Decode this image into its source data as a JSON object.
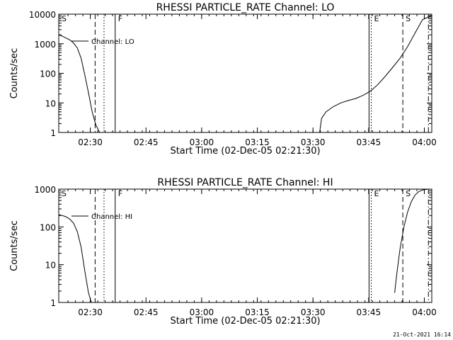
{
  "footer": {
    "timestamp": "21-Oct-2021 16:14"
  },
  "style": {
    "background": "#ffffff",
    "foreground": "#000000"
  },
  "chart_data": [
    {
      "type": "line",
      "title": "RHESSI PARTICLE_RATE Channel: LO",
      "xlabel": "Start Time (02-Dec-05 02:21:30)",
      "ylabel": "Counts/sec",
      "x_unit": "minutes after 02:21:30",
      "xlim": [
        0,
        100.5
      ],
      "ylim": [
        1,
        10000
      ],
      "yscale": "log",
      "grid": false,
      "x_ticks": [
        {
          "label": "02:30",
          "x": 8.5
        },
        {
          "label": "02:45",
          "x": 23.5
        },
        {
          "label": "03:00",
          "x": 38.5
        },
        {
          "label": "03:15",
          "x": 53.5
        },
        {
          "label": "03:30",
          "x": 68.5
        },
        {
          "label": "03:45",
          "x": 83.5
        },
        {
          "label": "04:00",
          "x": 98.5
        }
      ],
      "y_ticks": [
        {
          "label": "1",
          "y": 1
        },
        {
          "label": "10",
          "y": 10
        },
        {
          "label": "100",
          "y": 100
        },
        {
          "label": "1000",
          "y": 1000
        },
        {
          "label": "10000",
          "y": 10000
        }
      ],
      "legend": {
        "position": "top-left",
        "entries": [
          "Channel: LO"
        ]
      },
      "series": [
        {
          "name": "Channel: LO",
          "segments": [
            [
              [
                0,
                2000
              ],
              [
                1,
                1800
              ],
              [
                2,
                1550
              ],
              [
                3,
                1350
              ],
              [
                4,
                1050
              ],
              [
                5,
                720
              ],
              [
                6,
                330
              ],
              [
                7,
                90
              ],
              [
                8,
                22
              ],
              [
                9,
                5
              ],
              [
                10,
                1.8
              ],
              [
                11,
                1
              ]
            ],
            [
              [
                70.3,
                1
              ],
              [
                70.8,
                3
              ],
              [
                72,
                5
              ],
              [
                74,
                7.5
              ],
              [
                76,
                10
              ],
              [
                78,
                12
              ],
              [
                80,
                14
              ],
              [
                82,
                18
              ],
              [
                84,
                25
              ],
              [
                86,
                42
              ],
              [
                88,
                80
              ],
              [
                90,
                160
              ],
              [
                92,
                330
              ],
              [
                94,
                800
              ],
              [
                96,
                2300
              ],
              [
                98,
                6500
              ],
              [
                100,
                8500
              ],
              [
                100.5,
                8800
              ]
            ]
          ]
        }
      ],
      "markers": [
        {
          "label": "S",
          "x": 0,
          "style": "dash-dot"
        },
        {
          "label": "",
          "x": 9.8,
          "style": "dashed"
        },
        {
          "label": "",
          "x": 12.2,
          "style": "dotted"
        },
        {
          "label": "F",
          "x": 15.2,
          "style": "solid"
        },
        {
          "label": "",
          "x": 83.6,
          "style": "solid"
        },
        {
          "label": "E",
          "x": 84.2,
          "style": "dotted"
        },
        {
          "label": "S",
          "x": 92.7,
          "style": "dashed"
        },
        {
          "label": "",
          "x": 99.6,
          "style": "dash-dot"
        }
      ]
    },
    {
      "type": "line",
      "title": "RHESSI PARTICLE_RATE Channel: HI",
      "xlabel": "Start Time (02-Dec-05 02:21:30)",
      "ylabel": "Counts/sec",
      "x_unit": "minutes after 02:21:30",
      "xlim": [
        0,
        100.5
      ],
      "ylim": [
        1,
        1000
      ],
      "yscale": "log",
      "grid": false,
      "x_ticks": [
        {
          "label": "02:30",
          "x": 8.5
        },
        {
          "label": "02:45",
          "x": 23.5
        },
        {
          "label": "03:00",
          "x": 38.5
        },
        {
          "label": "03:15",
          "x": 53.5
        },
        {
          "label": "03:30",
          "x": 68.5
        },
        {
          "label": "03:45",
          "x": 83.5
        },
        {
          "label": "04:00",
          "x": 98.5
        }
      ],
      "y_ticks": [
        {
          "label": "1",
          "y": 1
        },
        {
          "label": "10",
          "y": 10
        },
        {
          "label": "100",
          "y": 100
        },
        {
          "label": "1000",
          "y": 1000
        }
      ],
      "legend": {
        "position": "top-left",
        "entries": [
          "Channel: HI"
        ]
      },
      "series": [
        {
          "name": "Channel: HI",
          "segments": [
            [
              [
                0,
                210
              ],
              [
                1,
                200
              ],
              [
                2,
                185
              ],
              [
                3,
                160
              ],
              [
                4,
                125
              ],
              [
                5,
                75
              ],
              [
                6,
                30
              ],
              [
                7,
                7
              ],
              [
                8,
                1.8
              ],
              [
                8.8,
                1
              ]
            ],
            [
              [
                90.5,
                1.8
              ],
              [
                91,
                5
              ],
              [
                91.5,
                12
              ],
              [
                92,
                28
              ],
              [
                93,
                100
              ],
              [
                94,
                250
              ],
              [
                95,
                470
              ],
              [
                96,
                700
              ],
              [
                97,
                860
              ],
              [
                98,
                950
              ],
              [
                99.5,
                1000
              ]
            ]
          ]
        }
      ],
      "markers": [
        {
          "label": "S",
          "x": 0,
          "style": "dash-dot"
        },
        {
          "label": "",
          "x": 9.8,
          "style": "dashed"
        },
        {
          "label": "",
          "x": 12.2,
          "style": "dotted"
        },
        {
          "label": "F",
          "x": 15.2,
          "style": "solid"
        },
        {
          "label": "",
          "x": 83.6,
          "style": "solid"
        },
        {
          "label": "E",
          "x": 84.2,
          "style": "dotted"
        },
        {
          "label": "S",
          "x": 92.7,
          "style": "dashed"
        },
        {
          "label": "",
          "x": 99.6,
          "style": "dash-dot"
        }
      ]
    }
  ]
}
